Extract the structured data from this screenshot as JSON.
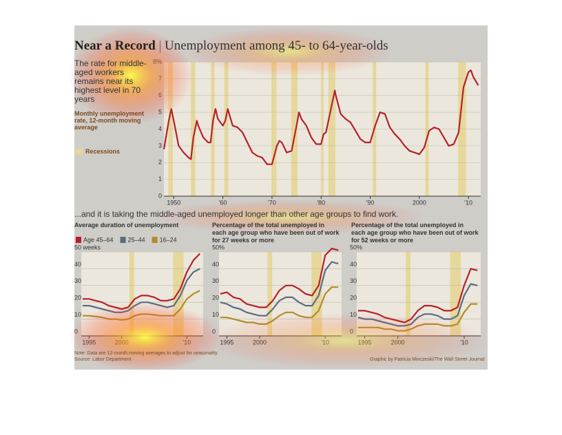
{
  "header": {
    "title": "Near a Record",
    "subtitle": "Unemployment among 45- to 64-year-olds"
  },
  "section_title": "...and it is taking the middle-aged unemployed longer than other age groups to find work.",
  "note": "Note: Data are 12-month moving averages to adjust for seasonality",
  "source": "Source: Labor Department",
  "credit": "Graphic by Patricia Minczeski/The Wall Street Journal",
  "chart_data": [
    {
      "type": "line",
      "description": "The rate for middle-aged workers remains near its highest level in 70 years",
      "y_label": "Monthly unemployment rate, 12-month moving average",
      "recession_label": "Recessions",
      "recession_color": "#e6d79a",
      "grid": true,
      "xlim": [
        1948,
        2012.5
      ],
      "xticks": [
        1950,
        {
          "value": 1960,
          "label": "'60"
        },
        {
          "value": 1970,
          "label": "'70"
        },
        {
          "value": 1980,
          "label": "'80"
        },
        {
          "value": 1990,
          "label": "'90"
        },
        2000,
        {
          "value": 2010,
          "label": "'10"
        }
      ],
      "ylim": [
        0,
        8
      ],
      "yticks": [
        0,
        1,
        2,
        3,
        4,
        5,
        6,
        7,
        {
          "value": 8,
          "label": "8%"
        }
      ],
      "recessions": [
        [
          1948.9,
          1949.8
        ],
        [
          1953.5,
          1954.4
        ],
        [
          1957.6,
          1958.3
        ],
        [
          1960.3,
          1961.1
        ],
        [
          1969.9,
          1970.9
        ],
        [
          1973.9,
          1975.2
        ],
        [
          1980.0,
          1980.5
        ],
        [
          1981.5,
          1982.9
        ],
        [
          1990.5,
          1991.2
        ],
        [
          2001.2,
          2001.9
        ],
        [
          2007.9,
          2009.5
        ]
      ],
      "x": [
        1948,
        1949,
        1949.5,
        1950,
        1951,
        1952,
        1953,
        1953.5,
        1954,
        1954.7,
        1955,
        1956,
        1957,
        1957.5,
        1958,
        1958.5,
        1959,
        1960,
        1960.5,
        1961,
        1962,
        1963,
        1964,
        1965,
        1966,
        1967,
        1968,
        1969,
        1970,
        1971,
        1971.5,
        1972,
        1973,
        1974,
        1975,
        1975.5,
        1976,
        1977,
        1978,
        1979,
        1980,
        1980.5,
        1981,
        1982,
        1982.8,
        1983,
        1984,
        1985,
        1986,
        1987,
        1988,
        1989,
        1990,
        1991,
        1992,
        1993,
        1994,
        1995,
        1996,
        1997,
        1998,
        1999,
        2000,
        2001,
        2002,
        2003,
        2004,
        2005,
        2006,
        2007,
        2008,
        2009,
        2010,
        2010.5,
        2011,
        2012
      ],
      "series": [
        {
          "color": "#b5202a",
          "values": [
            2.8,
            4.5,
            5.2,
            4.5,
            3.0,
            2.6,
            2.3,
            2.2,
            3.5,
            4.5,
            4.2,
            3.5,
            3.2,
            3.2,
            4.5,
            5.2,
            4.6,
            4.2,
            4.5,
            5.2,
            4.2,
            4.1,
            3.8,
            3.2,
            2.6,
            2.4,
            2.3,
            1.9,
            1.9,
            3.0,
            3.3,
            3.2,
            2.6,
            2.7,
            4.2,
            5.0,
            4.6,
            4.2,
            3.5,
            3.1,
            3.1,
            3.7,
            3.8,
            5.2,
            6.3,
            6.0,
            4.9,
            4.6,
            4.4,
            3.9,
            3.4,
            3.2,
            3.2,
            4.2,
            5.0,
            4.9,
            4.1,
            3.7,
            3.4,
            3.0,
            2.7,
            2.6,
            2.5,
            2.9,
            3.9,
            4.1,
            4.0,
            3.5,
            3.0,
            3.1,
            3.8,
            6.5,
            7.4,
            7.5,
            7.1,
            6.6
          ]
        }
      ]
    },
    {
      "type": "line",
      "title": "Average duration of unemployment",
      "grid": true,
      "recession_color": "#e6d79a",
      "xlim": [
        1993.8,
        2012.5
      ],
      "xticks": [
        1995,
        2000,
        {
          "value": 2010,
          "label": "'10"
        }
      ],
      "ylim": [
        0,
        50
      ],
      "yticks": [
        0,
        10,
        20,
        30,
        40,
        {
          "value": 50,
          "label": "50 weeks"
        }
      ],
      "recessions": [
        [
          2001.2,
          2001.9
        ],
        [
          2007.9,
          2009.5
        ]
      ],
      "x": [
        1994,
        1995,
        1996,
        1997,
        1998,
        1999,
        2000,
        2001,
        2002,
        2003,
        2004,
        2005,
        2006,
        2007,
        2008,
        2009,
        2010,
        2011,
        2012
      ],
      "series": [
        {
          "name": "Age 45–64",
          "color": "#b5202a",
          "values": [
            22,
            22,
            21,
            20,
            18,
            17,
            16,
            17,
            22,
            24,
            24,
            23,
            21,
            21,
            22,
            28,
            38,
            45,
            49
          ]
        },
        {
          "name": "25–44",
          "color": "#5a6b86",
          "values": [
            18,
            18,
            17,
            16,
            15,
            14,
            14,
            15,
            18,
            20,
            20,
            19,
            18,
            17,
            18,
            24,
            33,
            38,
            40
          ]
        },
        {
          "name": "16–24",
          "color": "#b58a2a",
          "values": [
            12,
            12,
            11.5,
            11,
            10,
            10,
            9.5,
            10,
            12,
            13,
            13,
            12.5,
            12,
            12,
            12,
            16,
            22,
            25,
            27
          ]
        }
      ]
    },
    {
      "type": "line",
      "title": "Percentage of the total unemployed in each age group who have been out of work for 27 weeks or more",
      "grid": true,
      "recession_color": "#e6d79a",
      "xlim": [
        1993.8,
        2012.5
      ],
      "xticks": [
        1995,
        2000,
        {
          "value": 2010,
          "label": "'10"
        }
      ],
      "ylim": [
        0,
        50
      ],
      "yticks": [
        0,
        10,
        20,
        30,
        40,
        {
          "value": 50,
          "label": "50%"
        }
      ],
      "recessions": [
        [
          2001.2,
          2001.9
        ],
        [
          2007.9,
          2009.5
        ]
      ],
      "x": [
        1994,
        1995,
        1996,
        1997,
        1998,
        1999,
        2000,
        2001,
        2002,
        2003,
        2004,
        2005,
        2006,
        2007,
        2008,
        2009,
        2010,
        2011,
        2012
      ],
      "series": [
        {
          "color": "#b5202a",
          "values": [
            25,
            26,
            23,
            22,
            19,
            18,
            17,
            17,
            21,
            27,
            30,
            30,
            28,
            25,
            24,
            30,
            48,
            52,
            51
          ]
        },
        {
          "color": "#5a6b86",
          "values": [
            20,
            19,
            17,
            16,
            14,
            13,
            12,
            12,
            16,
            21,
            23,
            23,
            20,
            18,
            18,
            24,
            39,
            44,
            43
          ]
        },
        {
          "color": "#b58a2a",
          "values": [
            11,
            11,
            10,
            9,
            8,
            8,
            7,
            7,
            9,
            12,
            14,
            14,
            12,
            11,
            11,
            15,
            25,
            29,
            29
          ]
        }
      ]
    },
    {
      "type": "line",
      "title": "Percentage of the total unemployed in each age group who have been out of work for 52 weeks or more",
      "grid": true,
      "recession_color": "#e6d79a",
      "xlim": [
        1993.8,
        2012.5
      ],
      "xticks": [
        1995,
        2000,
        {
          "value": 2010,
          "label": "'10"
        }
      ],
      "ylim": [
        0,
        50
      ],
      "yticks": [
        0,
        10,
        20,
        30,
        40,
        {
          "value": 50,
          "label": "50%"
        }
      ],
      "recessions": [
        [
          2001.2,
          2001.9
        ],
        [
          2007.9,
          2009.5
        ]
      ],
      "x": [
        1994,
        1995,
        1996,
        1997,
        1998,
        1999,
        2000,
        2001,
        2002,
        2003,
        2004,
        2005,
        2006,
        2007,
        2008,
        2009,
        2010,
        2011,
        2012
      ],
      "series": [
        {
          "color": "#b5202a",
          "values": [
            15,
            15,
            14,
            13,
            11,
            10,
            9,
            8,
            10,
            15,
            18,
            18,
            17,
            15,
            15,
            17,
            30,
            40,
            39
          ]
        },
        {
          "color": "#5a6b86",
          "values": [
            11,
            10,
            10,
            9,
            8,
            7,
            6,
            6,
            7,
            11,
            13,
            13,
            12,
            10,
            10,
            12,
            24,
            31,
            30
          ]
        },
        {
          "color": "#b58a2a",
          "values": [
            5,
            5,
            5,
            5,
            4,
            4,
            3,
            3,
            4,
            6,
            7,
            7,
            7,
            6,
            6,
            7,
            14,
            19,
            19
          ]
        }
      ]
    }
  ]
}
